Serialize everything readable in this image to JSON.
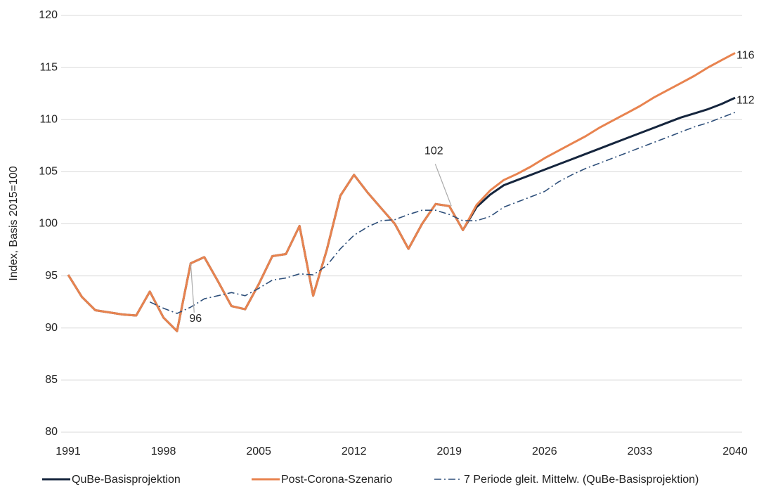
{
  "chart_data": {
    "type": "line",
    "y_label": "Index, Basis 2015=100",
    "x": [
      1991,
      1992,
      1993,
      1994,
      1995,
      1996,
      1997,
      1998,
      1999,
      2000,
      2001,
      2002,
      2003,
      2004,
      2005,
      2006,
      2007,
      2008,
      2009,
      2010,
      2011,
      2012,
      2013,
      2014,
      2015,
      2016,
      2017,
      2018,
      2019,
      2020,
      2021,
      2022,
      2023,
      2024,
      2025,
      2026,
      2027,
      2028,
      2029,
      2030,
      2031,
      2032,
      2033,
      2034,
      2035,
      2036,
      2037,
      2038,
      2039,
      2040
    ],
    "series": [
      {
        "name": "QuBe-Basisprojektion",
        "color": "#15253d",
        "style": "solid",
        "values": [
          95.1,
          93.0,
          91.7,
          91.5,
          91.3,
          91.2,
          93.5,
          91.0,
          89.7,
          96.2,
          96.8,
          94.5,
          92.1,
          91.8,
          94.2,
          96.9,
          97.1,
          99.8,
          93.1,
          97.5,
          102.7,
          104.7,
          103.0,
          101.5,
          100.0,
          97.6,
          100.0,
          101.9,
          101.7,
          99.4,
          101.6,
          102.8,
          103.7,
          104.2,
          104.7,
          105.2,
          105.7,
          106.2,
          106.7,
          107.2,
          107.7,
          108.2,
          108.7,
          109.2,
          109.7,
          110.2,
          110.6,
          111.0,
          111.5,
          112.1
        ]
      },
      {
        "name": "Post-Corona-Szenario",
        "color": "#e8834f",
        "style": "solid",
        "values": [
          95.1,
          93.0,
          91.7,
          91.5,
          91.3,
          91.2,
          93.5,
          91.0,
          89.7,
          96.2,
          96.8,
          94.5,
          92.1,
          91.8,
          94.2,
          96.9,
          97.1,
          99.8,
          93.1,
          97.5,
          102.7,
          104.7,
          103.0,
          101.5,
          100.0,
          97.6,
          100.0,
          101.9,
          101.7,
          99.4,
          101.8,
          103.2,
          104.2,
          104.8,
          105.5,
          106.3,
          107.0,
          107.7,
          108.4,
          109.2,
          109.9,
          110.6,
          111.3,
          112.1,
          112.8,
          113.5,
          114.2,
          115.0,
          115.7,
          116.4
        ]
      },
      {
        "name": "7 Periode gleit. Mittelw. (QuBe-Basisprojektion)",
        "color": "#2e4f7a",
        "style": "dashdot",
        "values": [
          null,
          null,
          null,
          null,
          null,
          null,
          92.5,
          91.9,
          91.4,
          92.0,
          92.8,
          93.1,
          93.4,
          93.1,
          93.8,
          94.6,
          94.8,
          95.2,
          95.1,
          96.0,
          97.6,
          98.9,
          99.7,
          100.3,
          100.4,
          100.9,
          101.3,
          101.3,
          100.9,
          100.3,
          100.3,
          100.7,
          101.6,
          102.1,
          102.6,
          103.1,
          104.0,
          104.7,
          105.3,
          105.8,
          106.3,
          106.8,
          107.3,
          107.8,
          108.3,
          108.8,
          109.3,
          109.7,
          110.2,
          110.7
        ]
      }
    ],
    "annotations": [
      {
        "text": "96",
        "x": 2000,
        "series": "Post-Corona-Szenario"
      },
      {
        "text": "102",
        "x": 2019,
        "series": "Post-Corona-Szenario"
      },
      {
        "text": "116",
        "x": 2040,
        "series": "Post-Corona-Szenario"
      },
      {
        "text": "112",
        "x": 2040,
        "series": "QuBe-Basisprojektion"
      }
    ],
    "xlim": [
      1991,
      2040
    ],
    "xticks": [
      1991,
      1998,
      2005,
      2012,
      2019,
      2026,
      2033,
      2040
    ],
    "ylim": [
      80,
      120
    ],
    "yticks": [
      80,
      85,
      90,
      95,
      100,
      105,
      110,
      115,
      120
    ],
    "grid": true,
    "legend": "bottom"
  }
}
